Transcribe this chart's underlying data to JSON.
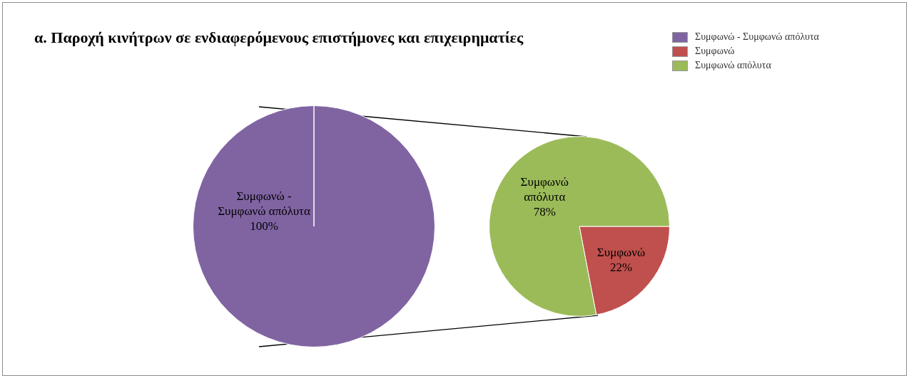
{
  "chart_data": [
    {
      "type": "pie",
      "title": "α. Παροχή κινήτρων σε ενδιαφερόμενους επιστήμονες και επιχειρηματίες",
      "categories": [
        "Συμφωνώ - Συμφωνώ απόλυτα"
      ],
      "values": [
        100
      ],
      "colors": [
        "#8064a2"
      ],
      "value_labels": [
        "100%"
      ],
      "legend": "top right"
    },
    {
      "type": "pie",
      "categories": [
        "Συμφωνώ",
        "Συμφωνώ απόλυτα"
      ],
      "values": [
        22,
        78
      ],
      "colors": [
        "#c0504d",
        "#9bbb59"
      ],
      "value_labels": [
        "22%",
        "78%"
      ],
      "legend": "top right"
    }
  ]
}
